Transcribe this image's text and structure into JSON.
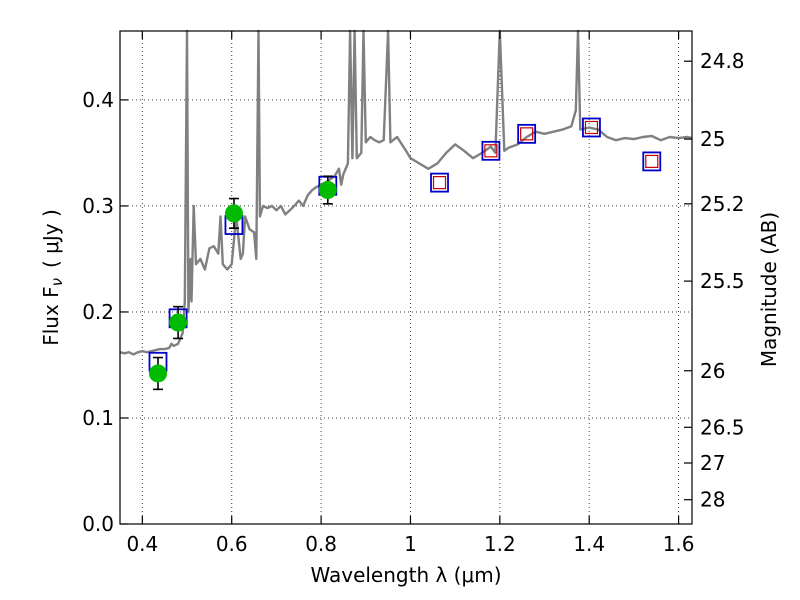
{
  "chart_data": {
    "type": "line",
    "xlabel": "Wavelength  λ (μm)",
    "ylabel": "Flux  F",
    "ylabel_sub": "ν",
    "ylabel_unit": "( μJy )",
    "y2label": "Magnitude (AB)",
    "xlim": [
      0.35,
      1.63
    ],
    "ylim": [
      0.0,
      0.465
    ],
    "grid": true,
    "x_ticks": [
      {
        "value": 0.4,
        "label": "0.4"
      },
      {
        "value": 0.6,
        "label": "0.6"
      },
      {
        "value": 0.8,
        "label": "0.8"
      },
      {
        "value": 1.0,
        "label": "1"
      },
      {
        "value": 1.2,
        "label": "1.2"
      },
      {
        "value": 1.4,
        "label": "1.4"
      },
      {
        "value": 1.6,
        "label": "1.6"
      }
    ],
    "y_ticks": [
      {
        "value": 0.0,
        "label": "0.0"
      },
      {
        "value": 0.1,
        "label": "0.1"
      },
      {
        "value": 0.2,
        "label": "0.2"
      },
      {
        "value": 0.3,
        "label": "0.3"
      },
      {
        "value": 0.4,
        "label": "0.4"
      }
    ],
    "y2_ticks": [
      {
        "value": 24.8,
        "label": "24.8"
      },
      {
        "value": 25,
        "label": "25"
      },
      {
        "value": 25.2,
        "label": "25.2"
      },
      {
        "value": 25.5,
        "label": "25.5"
      },
      {
        "value": 26,
        "label": "26"
      },
      {
        "value": 26.5,
        "label": "26.5"
      },
      {
        "value": 27,
        "label": "27"
      },
      {
        "value": 28,
        "label": "28"
      }
    ],
    "spectrum": {
      "color": "#808080",
      "points": [
        [
          0.35,
          0.162
        ],
        [
          0.36,
          0.161
        ],
        [
          0.37,
          0.162
        ],
        [
          0.38,
          0.16
        ],
        [
          0.39,
          0.162
        ],
        [
          0.4,
          0.163
        ],
        [
          0.41,
          0.162
        ],
        [
          0.42,
          0.163
        ],
        [
          0.43,
          0.164
        ],
        [
          0.44,
          0.165
        ],
        [
          0.45,
          0.165
        ],
        [
          0.46,
          0.166
        ],
        [
          0.465,
          0.17
        ],
        [
          0.47,
          0.168
        ],
        [
          0.48,
          0.17
        ],
        [
          0.485,
          0.175
        ],
        [
          0.49,
          0.18
        ],
        [
          0.495,
          0.21
        ],
        [
          0.5,
          0.465
        ],
        [
          0.503,
          0.2
        ],
        [
          0.508,
          0.25
        ],
        [
          0.51,
          0.21
        ],
        [
          0.515,
          0.3
        ],
        [
          0.52,
          0.245
        ],
        [
          0.53,
          0.25
        ],
        [
          0.54,
          0.24
        ],
        [
          0.55,
          0.26
        ],
        [
          0.56,
          0.262
        ],
        [
          0.57,
          0.255
        ],
        [
          0.575,
          0.29
        ],
        [
          0.58,
          0.245
        ],
        [
          0.59,
          0.24
        ],
        [
          0.6,
          0.245
        ],
        [
          0.61,
          0.29
        ],
        [
          0.62,
          0.25
        ],
        [
          0.625,
          0.255
        ],
        [
          0.63,
          0.29
        ],
        [
          0.64,
          0.278
        ],
        [
          0.65,
          0.275
        ],
        [
          0.655,
          0.25
        ],
        [
          0.66,
          0.465
        ],
        [
          0.663,
          0.29
        ],
        [
          0.67,
          0.3
        ],
        [
          0.68,
          0.298
        ],
        [
          0.69,
          0.3
        ],
        [
          0.7,
          0.296
        ],
        [
          0.71,
          0.3
        ],
        [
          0.72,
          0.292
        ],
        [
          0.73,
          0.296
        ],
        [
          0.74,
          0.3
        ],
        [
          0.75,
          0.305
        ],
        [
          0.76,
          0.3
        ],
        [
          0.77,
          0.31
        ],
        [
          0.78,
          0.315
        ],
        [
          0.79,
          0.318
        ],
        [
          0.8,
          0.32
        ],
        [
          0.81,
          0.322
        ],
        [
          0.82,
          0.325
        ],
        [
          0.83,
          0.328
        ],
        [
          0.84,
          0.335
        ],
        [
          0.845,
          0.32
        ],
        [
          0.85,
          0.33
        ],
        [
          0.86,
          0.34
        ],
        [
          0.865,
          0.465
        ],
        [
          0.87,
          0.345
        ],
        [
          0.875,
          0.465
        ],
        [
          0.88,
          0.345
        ],
        [
          0.89,
          0.35
        ],
        [
          0.895,
          0.465
        ],
        [
          0.9,
          0.36
        ],
        [
          0.91,
          0.365
        ],
        [
          0.92,
          0.362
        ],
        [
          0.93,
          0.36
        ],
        [
          0.94,
          0.362
        ],
        [
          0.95,
          0.465
        ],
        [
          0.955,
          0.36
        ],
        [
          0.97,
          0.365
        ],
        [
          0.99,
          0.352
        ],
        [
          1.0,
          0.345
        ],
        [
          1.02,
          0.34
        ],
        [
          1.04,
          0.335
        ],
        [
          1.06,
          0.34
        ],
        [
          1.08,
          0.35
        ],
        [
          1.1,
          0.358
        ],
        [
          1.12,
          0.352
        ],
        [
          1.14,
          0.345
        ],
        [
          1.16,
          0.35
        ],
        [
          1.18,
          0.356
        ],
        [
          1.19,
          0.35
        ],
        [
          1.2,
          0.465
        ],
        [
          1.21,
          0.352
        ],
        [
          1.22,
          0.355
        ],
        [
          1.24,
          0.358
        ],
        [
          1.26,
          0.365
        ],
        [
          1.28,
          0.37
        ],
        [
          1.3,
          0.368
        ],
        [
          1.32,
          0.37
        ],
        [
          1.34,
          0.372
        ],
        [
          1.36,
          0.375
        ],
        [
          1.37,
          0.39
        ],
        [
          1.375,
          0.465
        ],
        [
          1.38,
          0.372
        ],
        [
          1.4,
          0.374
        ],
        [
          1.42,
          0.372
        ],
        [
          1.44,
          0.365
        ],
        [
          1.46,
          0.362
        ],
        [
          1.48,
          0.364
        ],
        [
          1.5,
          0.363
        ],
        [
          1.52,
          0.365
        ],
        [
          1.54,
          0.366
        ],
        [
          1.56,
          0.362
        ],
        [
          1.58,
          0.365
        ],
        [
          1.6,
          0.364
        ],
        [
          1.62,
          0.365
        ],
        [
          1.63,
          0.364
        ]
      ]
    },
    "model_photometry": {
      "edge_color": "#0000cc",
      "points": [
        [
          0.435,
          0.153
        ],
        [
          0.48,
          0.194
        ],
        [
          0.605,
          0.282
        ],
        [
          0.815,
          0.319
        ],
        [
          1.065,
          0.322
        ],
        [
          1.18,
          0.352
        ],
        [
          1.26,
          0.368
        ],
        [
          1.405,
          0.374
        ],
        [
          1.54,
          0.342
        ]
      ]
    },
    "observed_upper": {
      "edge_color": "#cc0000",
      "points": [
        [
          1.065,
          0.322
        ],
        [
          1.18,
          0.352
        ],
        [
          1.26,
          0.368
        ],
        [
          1.405,
          0.374
        ],
        [
          1.54,
          0.342
        ]
      ]
    },
    "observed_detections": {
      "color": "#00bb00",
      "points": [
        {
          "x": 0.435,
          "y": 0.142,
          "err": 0.015
        },
        {
          "x": 0.48,
          "y": 0.19,
          "err": 0.015
        },
        {
          "x": 0.605,
          "y": 0.293,
          "err": 0.014
        },
        {
          "x": 0.815,
          "y": 0.315,
          "err": 0.013
        }
      ]
    }
  }
}
